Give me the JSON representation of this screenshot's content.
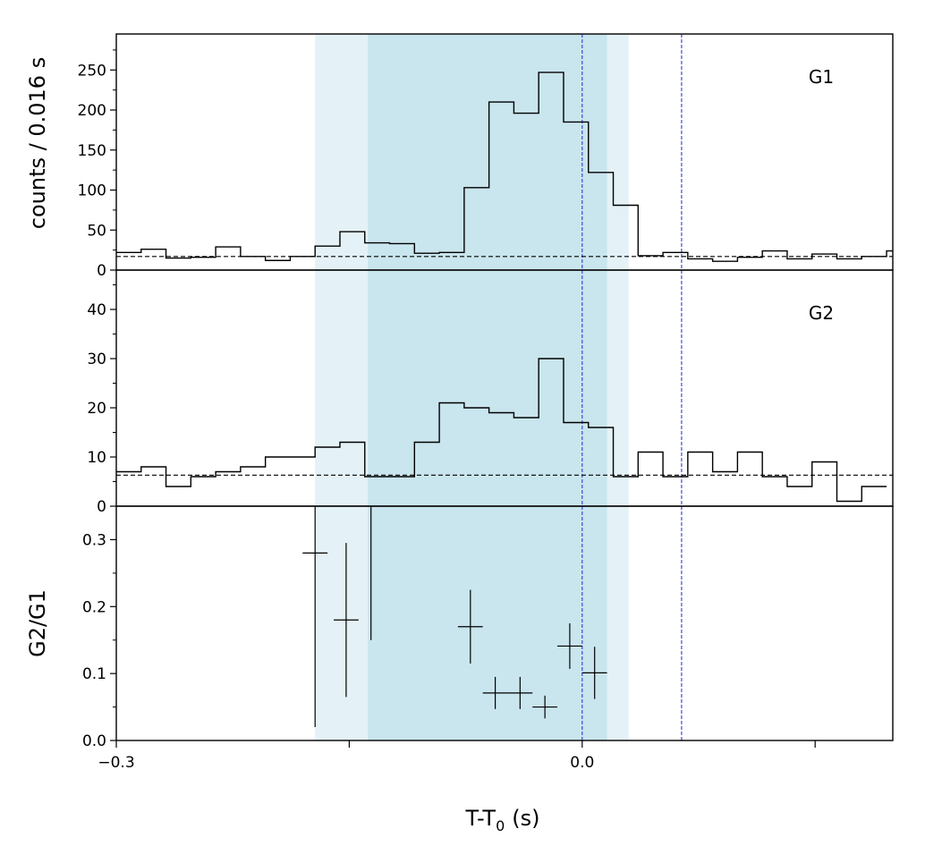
{
  "chart_data": {
    "type": "line",
    "xlabel_main": "T-T",
    "xlabel_sub": "0",
    "xlabel_unit": "(s)",
    "xlim": [
      -0.3,
      0.2
    ],
    "x_tick_labels": [
      {
        "value": -0.3,
        "label": "−0.3"
      },
      {
        "value": 0.0,
        "label": "0.0"
      }
    ],
    "x_ticks": [
      -0.3,
      -0.15,
      0.0,
      0.15
    ],
    "bin_width": 0.016,
    "highlight_regions": [
      {
        "start": -0.172,
        "end": 0.03,
        "color": "#e4f2f7"
      },
      {
        "start": -0.138,
        "end": 0.016,
        "color": "#c9e5ed"
      }
    ],
    "vlines": [
      {
        "x": 0.0,
        "color": "#2b3dd9"
      },
      {
        "x": 0.064,
        "color": "#2b3dd9"
      }
    ],
    "shared_ylabel": "counts /  0.016 s",
    "panels": [
      {
        "label": "G1",
        "ylim": [
          0,
          295
        ],
        "yticks": [
          0,
          50,
          100,
          150,
          200,
          250
        ],
        "ytick_labels": [
          "0",
          "50",
          "100",
          "150",
          "200",
          "250"
        ],
        "minor_step": 25,
        "background": 17,
        "bin_edges_start": -0.3,
        "counts": [
          22,
          26,
          15,
          16,
          29,
          17,
          12,
          17,
          30,
          48,
          34,
          33,
          21,
          22,
          103,
          210,
          196,
          247,
          185,
          122,
          81,
          18,
          22,
          14,
          11,
          16,
          24,
          14,
          20,
          14,
          17,
          24
        ]
      },
      {
        "label": "G2",
        "ylim": [
          0,
          48
        ],
        "yticks": [
          0,
          10,
          20,
          30,
          40
        ],
        "ytick_labels": [
          "0",
          "10",
          "20",
          "30",
          "40"
        ],
        "minor_step": 5,
        "background": 6.3,
        "bin_edges_start": -0.3,
        "counts": [
          7,
          8,
          4,
          6,
          7,
          8,
          10,
          10,
          12,
          13,
          6,
          6,
          13,
          21,
          20,
          19,
          18,
          30,
          17,
          16,
          6,
          11,
          6,
          11,
          7,
          11,
          6,
          4,
          9,
          1,
          4
        ]
      },
      {
        "label": "",
        "ylabel": "G2/G1",
        "ylim": [
          0,
          0.35
        ],
        "yticks": [
          0.0,
          0.1,
          0.2,
          0.3
        ],
        "ytick_labels": [
          "0.0",
          "0.1",
          "0.2",
          "0.3"
        ],
        "minor_step": 0.05,
        "ratio_points": [
          {
            "x": -0.172,
            "y": 0.28,
            "xerr": 0.008,
            "ylo": 0.02,
            "yhi": 0.35
          },
          {
            "x": -0.152,
            "y": 0.18,
            "xerr": 0.008,
            "ylo": 0.065,
            "yhi": 0.295
          },
          {
            "x": -0.136,
            "y": 0.15,
            "xerr": 0.0,
            "ylo": 0.15,
            "yhi": 0.35
          },
          {
            "x": -0.072,
            "y": 0.17,
            "xerr": 0.008,
            "ylo": 0.115,
            "yhi": 0.225
          },
          {
            "x": -0.056,
            "y": 0.071,
            "xerr": 0.008,
            "ylo": 0.047,
            "yhi": 0.095
          },
          {
            "x": -0.04,
            "y": 0.071,
            "xerr": 0.008,
            "ylo": 0.047,
            "yhi": 0.095
          },
          {
            "x": -0.024,
            "y": 0.05,
            "xerr": 0.008,
            "ylo": 0.033,
            "yhi": 0.067
          },
          {
            "x": -0.008,
            "y": 0.141,
            "xerr": 0.008,
            "ylo": 0.107,
            "yhi": 0.175
          },
          {
            "x": 0.008,
            "y": 0.101,
            "xerr": 0.008,
            "ylo": 0.062,
            "yhi": 0.14
          }
        ]
      }
    ]
  }
}
